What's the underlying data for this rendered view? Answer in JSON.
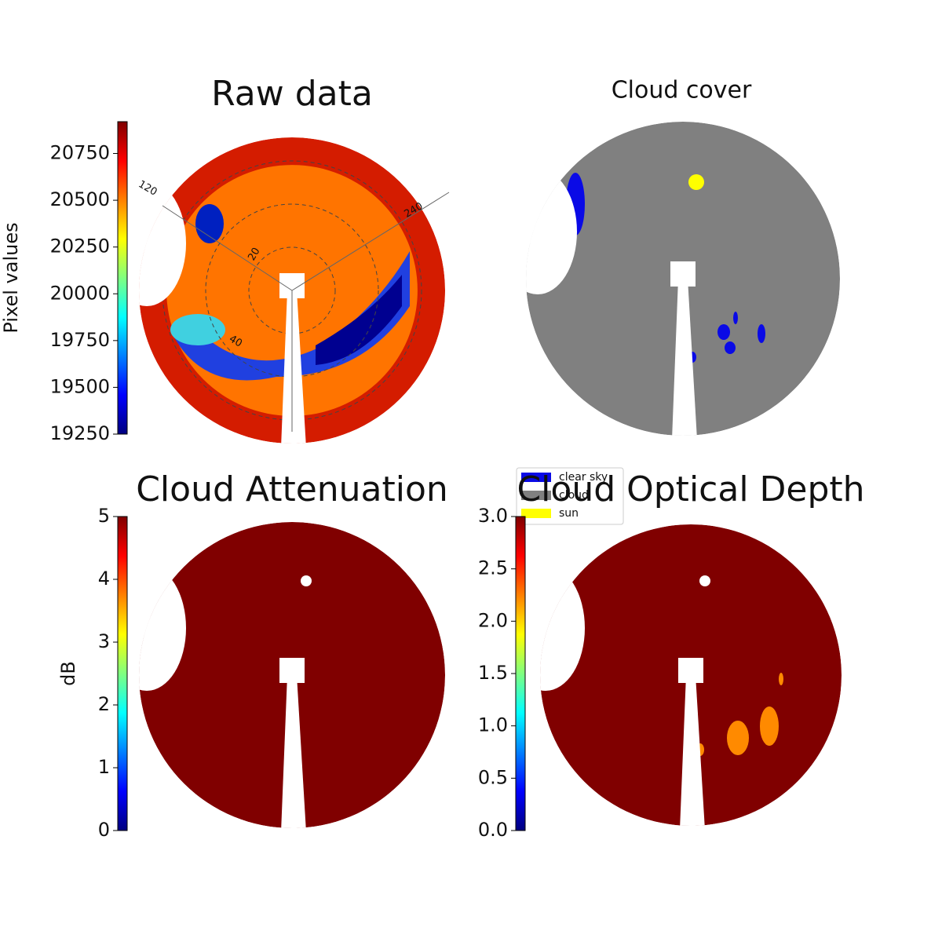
{
  "chart_data": [
    {
      "type": "image",
      "title": "Raw data",
      "colorbar_label": "Pixel values",
      "colormap": "jet",
      "ylim": [
        19250,
        20920
      ],
      "yticks": [
        19250,
        19500,
        19750,
        20000,
        20250,
        20500,
        20750
      ],
      "annotations": [
        "120",
        "240",
        "20",
        "40"
      ]
    },
    {
      "type": "image",
      "title": "Cloud cover",
      "legend": [
        {
          "label": "clear sky",
          "color": "#0a0ae6"
        },
        {
          "label": "cloud",
          "color": "#808080"
        },
        {
          "label": "sun",
          "color": "#ffff00"
        }
      ]
    },
    {
      "type": "image",
      "title": "Cloud Attenuation",
      "colorbar_label": "dB",
      "colormap": "jet",
      "ylim": [
        0,
        5
      ],
      "yticks": [
        0,
        1,
        2,
        3,
        4,
        5
      ]
    },
    {
      "type": "image",
      "title": "Cloud Optical Depth",
      "colormap": "jet",
      "ylim": [
        0,
        3
      ],
      "yticks": [
        {
          "value": 0,
          "label": "0.0"
        },
        0.5,
        {
          "value": 1,
          "label": "1.0"
        },
        1.5,
        {
          "value": 2,
          "label": "2.0"
        },
        2.5,
        {
          "value": 3,
          "label": "3.0"
        }
      ]
    }
  ]
}
